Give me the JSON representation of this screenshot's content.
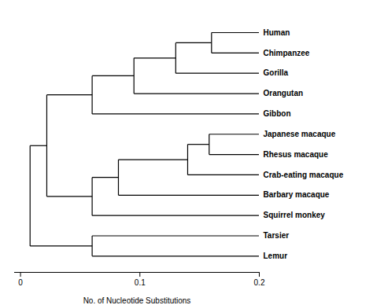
{
  "chart_data": {
    "type": "dendrogram",
    "xlabel": "No. of Nucleotide Substitutions",
    "xlim": [
      -0.005,
      0.2
    ],
    "xticks": [
      0,
      0.1,
      0.2
    ],
    "color": "#000000",
    "leaf_x": 0.2,
    "tree": {
      "x": 0.008,
      "children": [
        {
          "x": 0.022,
          "children": [
            {
              "x": 0.06,
              "children": [
                {
                  "x": 0.095,
                  "children": [
                    {
                      "x": 0.13,
                      "children": [
                        {
                          "x": 0.16,
                          "children": [
                            "Human",
                            "Chimpanzee"
                          ]
                        },
                        "Gorilla"
                      ]
                    },
                    "Orangutan"
                  ]
                },
                "Gibbon"
              ]
            },
            {
              "x": 0.06,
              "children": [
                {
                  "x": 0.082,
                  "children": [
                    {
                      "x": 0.14,
                      "children": [
                        {
                          "x": 0.158,
                          "children": [
                            "Japanese macaque",
                            "Rhesus macaque"
                          ]
                        },
                        "Crab-eating macaque"
                      ]
                    },
                    "Barbary macaque"
                  ]
                },
                "Squirrel monkey"
              ]
            }
          ]
        },
        {
          "x": 0.06,
          "children": [
            "Tarsier",
            "Lemur"
          ]
        }
      ]
    }
  }
}
